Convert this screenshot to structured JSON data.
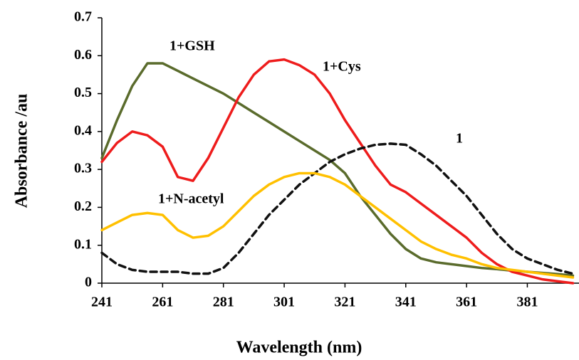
{
  "chart_data": {
    "type": "line",
    "x_label": "Wavelength (nm)",
    "y_label": "Absorbance /au",
    "x": [
      241,
      246,
      251,
      256,
      261,
      266,
      271,
      276,
      281,
      286,
      291,
      296,
      301,
      306,
      311,
      316,
      321,
      326,
      331,
      336,
      341,
      346,
      351,
      356,
      361,
      366,
      371,
      376,
      381,
      386,
      391,
      396
    ],
    "xlim": [
      241,
      398
    ],
    "xticks": [
      241,
      261,
      281,
      301,
      321,
      341,
      361,
      381
    ],
    "ylim": [
      0,
      0.7
    ],
    "yticks": [
      0,
      0.1,
      0.2,
      0.3,
      0.4,
      0.5,
      0.6,
      0.7
    ],
    "grid": false,
    "series": [
      {
        "name": "1+GSH",
        "color": "#5a6b2c",
        "dash": false,
        "values": [
          0.33,
          0.43,
          0.52,
          0.58,
          0.58,
          0.56,
          0.54,
          0.52,
          0.5,
          0.475,
          0.45,
          0.425,
          0.4,
          0.375,
          0.35,
          0.325,
          0.29,
          0.23,
          0.18,
          0.13,
          0.09,
          0.065,
          0.055,
          0.05,
          0.045,
          0.04,
          0.037,
          0.033,
          0.03,
          0.027,
          0.024,
          0.02
        ]
      },
      {
        "name": "1+Cys",
        "color": "#ee1c1c",
        "dash": false,
        "values": [
          0.32,
          0.37,
          0.4,
          0.39,
          0.36,
          0.28,
          0.27,
          0.33,
          0.41,
          0.49,
          0.55,
          0.585,
          0.59,
          0.575,
          0.55,
          0.5,
          0.43,
          0.37,
          0.31,
          0.26,
          0.24,
          0.21,
          0.18,
          0.15,
          0.12,
          0.08,
          0.05,
          0.03,
          0.02,
          0.01,
          0.005,
          0
        ]
      },
      {
        "name": "1",
        "color": "#111111",
        "dash": true,
        "values": [
          0.08,
          0.05,
          0.035,
          0.03,
          0.03,
          0.03,
          0.025,
          0.025,
          0.04,
          0.08,
          0.13,
          0.18,
          0.22,
          0.26,
          0.29,
          0.32,
          0.34,
          0.355,
          0.365,
          0.368,
          0.365,
          0.34,
          0.31,
          0.27,
          0.23,
          0.18,
          0.13,
          0.09,
          0.065,
          0.05,
          0.035,
          0.025
        ]
      },
      {
        "name": "1+N-acetyl",
        "color": "#ffc000",
        "dash": false,
        "values": [
          0.14,
          0.16,
          0.18,
          0.185,
          0.18,
          0.14,
          0.12,
          0.125,
          0.15,
          0.19,
          0.23,
          0.26,
          0.28,
          0.29,
          0.29,
          0.28,
          0.26,
          0.23,
          0.2,
          0.17,
          0.14,
          0.11,
          0.09,
          0.075,
          0.065,
          0.05,
          0.04,
          0.035,
          0.03,
          0.025,
          0.02,
          0.015
        ]
      }
    ]
  }
}
